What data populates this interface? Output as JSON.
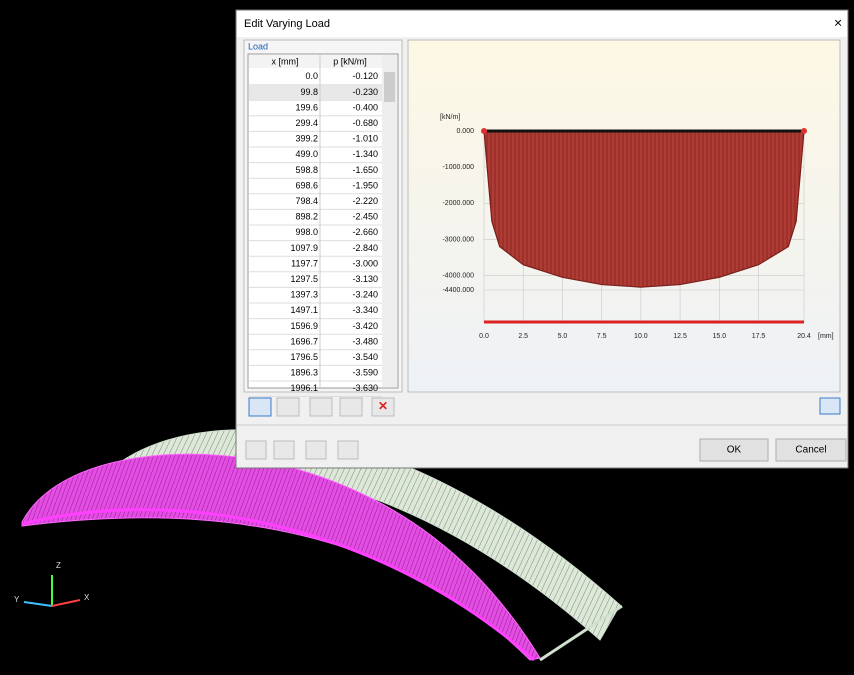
{
  "dialog": {
    "title": "Edit Varying Load",
    "group_label": "Load",
    "table": {
      "headers": [
        "x [mm]",
        "p [kN/m]"
      ],
      "rows": [
        [
          "0.0",
          "-0.120"
        ],
        [
          "99.8",
          "-0.230"
        ],
        [
          "199.6",
          "-0.400"
        ],
        [
          "299.4",
          "-0.680"
        ],
        [
          "399.2",
          "-1.010"
        ],
        [
          "499.0",
          "-1.340"
        ],
        [
          "598.8",
          "-1.650"
        ],
        [
          "698.6",
          "-1.950"
        ],
        [
          "798.4",
          "-2.220"
        ],
        [
          "898.2",
          "-2.450"
        ],
        [
          "998.0",
          "-2.660"
        ],
        [
          "1097.9",
          "-2.840"
        ],
        [
          "1197.7",
          "-3.000"
        ],
        [
          "1297.5",
          "-3.130"
        ],
        [
          "1397.3",
          "-3.240"
        ],
        [
          "1497.1",
          "-3.340"
        ],
        [
          "1596.9",
          "-3.420"
        ],
        [
          "1696.7",
          "-3.480"
        ],
        [
          "1796.5",
          "-3.540"
        ],
        [
          "1896.3",
          "-3.590"
        ],
        [
          "1996.1",
          "-3.630"
        ]
      ]
    },
    "buttons": {
      "ok": "OK",
      "cancel": "Cancel"
    }
  },
  "chart_data": {
    "type": "area",
    "ylabel": "[kN/m]",
    "xlabel": "[mm]",
    "color": "#b03a34",
    "x": [
      0,
      0.5,
      1,
      2.5,
      5,
      7.5,
      10,
      12.5,
      15,
      17.5,
      19.4,
      19.9,
      20.4
    ],
    "values": [
      0,
      -2500,
      -3200,
      -3700,
      -4050,
      -4250,
      -4320,
      -4250,
      -4050,
      -3700,
      -3200,
      -2500,
      0
    ],
    "xlim": [
      0,
      20.4
    ],
    "ylim": [
      -4400,
      0
    ],
    "yticks": [
      {
        "value": 0,
        "label": "0.000"
      },
      {
        "value": -1000,
        "label": "-1000.000"
      },
      {
        "value": -2000,
        "label": "-2000.000"
      },
      {
        "value": -3000,
        "label": "-3000.000"
      },
      {
        "value": -4000,
        "label": "-4000.000"
      },
      {
        "value": -4400,
        "label": "-4400.000"
      }
    ],
    "xticks": [
      {
        "value": 0,
        "label": "0.0"
      },
      2.5,
      {
        "value": 5,
        "label": "5.0"
      },
      7.5,
      {
        "value": 10,
        "label": "10.0"
      },
      12.5,
      {
        "value": 15,
        "label": "15.0"
      },
      17.5,
      20.4
    ],
    "grid": true
  },
  "viewport": {
    "axes": [
      "Z",
      "Y",
      "X"
    ]
  }
}
